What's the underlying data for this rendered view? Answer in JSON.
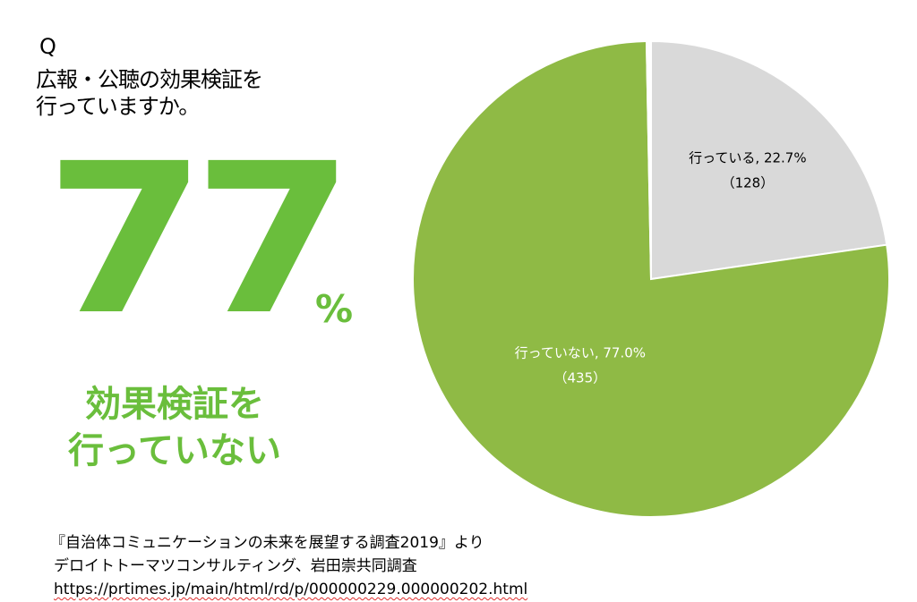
{
  "colors": {
    "accent_green": "#6abe3c",
    "slice_not_doing": "#8fba45",
    "slice_doing": "#d9d9d9",
    "label_dark": "#000000",
    "label_light": "#ffffff"
  },
  "question": {
    "marker": "Q",
    "text": "広報・公聴の効果検証を\n行っていますか。"
  },
  "highlight": {
    "number": "77",
    "unit": "%",
    "caption": "効果検証を\n行っていない"
  },
  "source": {
    "line1": "『自治体コミュニケーションの未来を展望する調査2019』より",
    "line2": "デロイトトーマツコンサルティング、岩田崇共同調査",
    "url": "https://prtimes.jp/main/html/rd/p/000000229.000000202.html"
  },
  "chart_data": {
    "type": "pie",
    "start_angle_deg": 0,
    "direction": "clockwise",
    "slices": [
      {
        "label": "行っている",
        "percent": 22.7,
        "count": 128,
        "pct_text": "行っている, 22.7%",
        "count_text": "（128）",
        "color": "#d9d9d9",
        "text_color": "#000000"
      },
      {
        "label": "行っていない",
        "percent": 77.0,
        "count": 435,
        "pct_text": "行っていない, 77.0%",
        "count_text": "（435）",
        "color": "#8fba45",
        "text_color": "#ffffff"
      },
      {
        "label": "",
        "percent": 0.3,
        "count": null,
        "pct_text": "",
        "count_text": "",
        "color": "#ffffff",
        "text_color": "#000000"
      }
    ]
  }
}
